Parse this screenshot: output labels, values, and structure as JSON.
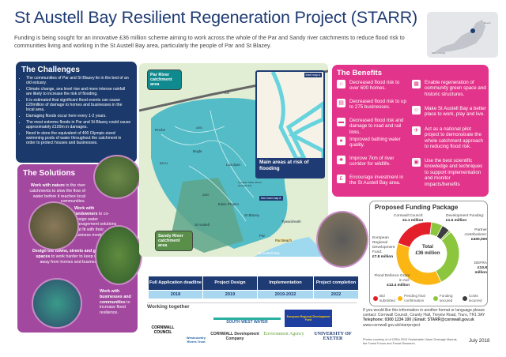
{
  "title": "St Austell Bay Resilient Regeneration Project (STARR)",
  "intro": "Funding is being sought for an innovative £36 million scheme aiming to work across the whole of the Par and Sandy river catchments to reduce flood risk to communities living and working in the St Austell Bay area, particularly the people of Par and St Blazey.",
  "minimap": {
    "label_devon": "Devon",
    "label_scilly": "Isles of Scilly"
  },
  "challenges": {
    "heading": "The Challenges",
    "items": [
      "The communities of Par and St Blazey lie in the bed of an old estuary.",
      "Climate change, sea level rise and more intense rainfall are likely to increase the risk of flooding.",
      "It is estimated that significant flood events can cause £20million of damage to homes and businesses in the local area.",
      "Damaging floods occur here every 1-2 years.",
      "The most extreme floods in Par and St Blazey could cause approximately £100m in damages.",
      "Need to store the equivalent of 400 Olympic-sized swimming pools of water throughout the catchment in order to protect houses and businesses."
    ]
  },
  "solutions": {
    "heading": "The Solutions",
    "items": [
      {
        "bold": "Work with nature",
        "rest": " in the river catchments to slow the flow of water before it reaches local communities."
      },
      {
        "bold": "Work with landowners",
        "rest": " to co-design water management solutions that fit with their business model."
      },
      {
        "bold": "Design the towns, streets and green spaces",
        "rest": " to work harder to keep water away from homes and businesses."
      },
      {
        "bold": "Work with businesses and communities",
        "rest": " to increase flood resilience."
      }
    ]
  },
  "map": {
    "par_label": "Par River catchment area",
    "sandy_label": "Sandy River catchment area",
    "inset_label": "Inset map A",
    "see_inset": "See inset map A",
    "risk_label": "Main areas at risk of flooding",
    "places": [
      "Roche",
      "Bugle",
      "Luxulyan",
      "St Blazey",
      "Tywardreath",
      "St Austell",
      "Par",
      "Par Beach",
      "Eden Project",
      "St Austell Bay",
      "A30",
      "A391",
      "B3274",
      "A390",
      "Luxulyan Valley World Heritage Site"
    ]
  },
  "benefits": {
    "heading": "The Benefits",
    "left": [
      {
        "icon": "houses-icon",
        "text": "Decreased flood risk to over 600 homes."
      },
      {
        "icon": "business-icon",
        "text": "Decreased flood risk to up to 275 businesses."
      },
      {
        "icon": "train-icon",
        "text": "Decreased flood risk and damage to road and rail links."
      },
      {
        "icon": "water-drop-icon",
        "text": "Improved bathing water quality."
      },
      {
        "icon": "tree-icon",
        "text": "Improve 7km of river corridor for wildlife."
      },
      {
        "icon": "investment-icon",
        "text": "Encourage investment in the St Austell Bay area."
      }
    ],
    "right": [
      {
        "icon": "regeneration-icon",
        "text": "Enable regeneration of community green space and historic structures."
      },
      {
        "icon": "play-icon",
        "text": "Make St Austell Bay a better place to work, play and live."
      },
      {
        "icon": "pilot-icon",
        "text": "Act as a national pilot project to demonstrate the whole catchment approach to reducing flood risk."
      },
      {
        "icon": "science-icon",
        "text": "Use the best scientific knowledge and techniques to support implementation and monitor impacts/benefits"
      }
    ]
  },
  "chart_data": {
    "type": "pie",
    "title": "Proposed Funding Package",
    "center_label": "Total",
    "center_value": "£36 million",
    "unit": "£ million",
    "slices": [
      {
        "name": "Cornwall Council",
        "label": "£2.1 million",
        "value": 2.1,
        "status": "Funding secured",
        "color": "#8cc63f"
      },
      {
        "name": "Development Funding",
        "label": "£1.5 million",
        "value": 1.5,
        "status": "Costs incurred",
        "color": "#3d3d3d"
      },
      {
        "name": "Partner contributions",
        "label": "£400,000",
        "value": 0.4,
        "status": "Funding secured",
        "color": "#8cc63f"
      },
      {
        "name": "DEFRA",
        "label": "£10.8 million",
        "value": 10.8,
        "status": "Funding secured",
        "color": "#8cc63f"
      },
      {
        "name": "Flood Defence Grant in Aid",
        "label": "£13.4 million",
        "value": 13.4,
        "status": "Pending final confirmation",
        "color": "#fbb613"
      },
      {
        "name": "European Regional Development Fund",
        "label": "£7.8 million",
        "value": 7.8,
        "status": "Bid submitted",
        "color": "#e3202a"
      }
    ],
    "legend": [
      {
        "label": "Bid submitted",
        "color": "#e3202a"
      },
      {
        "label": "Pending final confirmation",
        "color": "#fbb613"
      },
      {
        "label": "Funding secured",
        "color": "#8cc63f"
      },
      {
        "label": "Costs incurred",
        "color": "#3d3d3d"
      }
    ],
    "legend_position": "bottom"
  },
  "timeline": [
    {
      "stage": "Full Application deadline",
      "date": "2018"
    },
    {
      "stage": "Project Design",
      "date": "2019"
    },
    {
      "stage": "Implementation",
      "date": "2019-2022"
    },
    {
      "stage": "Project completion",
      "date": "2022"
    }
  ],
  "partners": {
    "heading": "Working together",
    "logos": [
      "CORNWALL COUNCIL",
      "Westcountry Rivers Trust",
      "SOUTH WEST WATER",
      "European Regional Development Fund",
      "CORNWALL Development Company",
      "Environment Agency",
      "UNIVERSITY OF EXETER"
    ]
  },
  "contact": {
    "line1": "If you would like this information in another format or language please contact: Cornwall Council, County Hall, Treyew Road, Truro, TR1 3AY",
    "phone": "Telephone: 0300 1234 100  |  Email: STARR@cornwall.gov.uk",
    "web": "www.cornwall.gov.uk/starrproject",
    "credits": "Photos courtesy of of CIRIA 2015 Sustainable Urban Drainage Manual, the Forest Forum and Forest Research.",
    "date": "July 2018"
  },
  "colors": {
    "navy": "#1b3a6b",
    "purple": "#a3489f",
    "pink": "#e3348b",
    "teal": "#3bb3c3"
  }
}
